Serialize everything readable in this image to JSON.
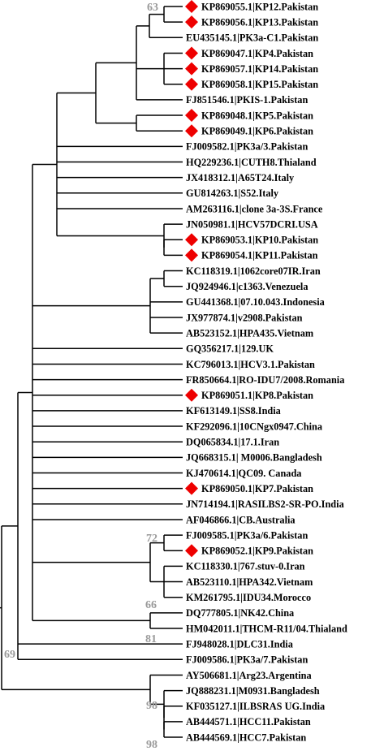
{
  "marker_color": "#ee0000",
  "support_color": "#9a9a9a",
  "leaves": [
    {
      "label": "KP869055.1|KP12.Pakistan",
      "marked": true
    },
    {
      "label": "KP869056.1|KP13.Pakistan",
      "marked": true
    },
    {
      "label": "EU435145.1|PK3a-C1.Pakistan",
      "marked": false
    },
    {
      "label": "KP869047.1|KP4.Pakistan",
      "marked": true
    },
    {
      "label": "KP869057.1|KP14.Pakistan",
      "marked": true
    },
    {
      "label": "KP869058.1|KP15.Pakistan",
      "marked": true
    },
    {
      "label": "FJ851546.1|PKIS-1.Pakistan",
      "marked": false
    },
    {
      "label": "KP869048.1|KP5.Pakistan",
      "marked": true
    },
    {
      "label": "KP869049.1|KP6.Pakistan",
      "marked": true
    },
    {
      "label": "FJ009582.1|PK3a/3.Pakistan",
      "marked": false
    },
    {
      "label": "HQ229236.1|CUTH8.Thialand",
      "marked": false
    },
    {
      "label": "JX418312.1|A65T24.Italy",
      "marked": false
    },
    {
      "label": "GU814263.1|S52.Italy",
      "marked": false
    },
    {
      "label": "AM263116.1|clone 3a-3S.France",
      "marked": false
    },
    {
      "label": "JN050981.1|HCV57DCRI.USA",
      "marked": false
    },
    {
      "label": "KP869053.1|KP10.Pakistan",
      "marked": true
    },
    {
      "label": "KP869054.1|KP11.Pakistan",
      "marked": true
    },
    {
      "label": "KC118319.1|1062core07IR.Iran",
      "marked": false
    },
    {
      "label": "JQ924946.1|c1363.Venezuela",
      "marked": false
    },
    {
      "label": "GU441368.1|07.10.043.Indonesia",
      "marked": false
    },
    {
      "label": "JX977874.1|v2908.Pakistan",
      "marked": false
    },
    {
      "label": "AB523152.1|HPA435.Vietnam",
      "marked": false
    },
    {
      "label": "GQ356217.1|129.UK",
      "marked": false
    },
    {
      "label": "KC796013.1|HCV3.1.Pakistan",
      "marked": false
    },
    {
      "label": "FR850664.1|RO-IDU7/2008.Romania",
      "marked": false
    },
    {
      "label": "KP869051.1|KP8.Pakistan",
      "marked": true
    },
    {
      "label": "KF613149.1|SS8.India",
      "marked": false
    },
    {
      "label": "KF292096.1|10CNgx0947.China",
      "marked": false
    },
    {
      "label": "DQ065834.1|17.1.Iran",
      "marked": false
    },
    {
      "label": "JQ668315.1| M0006.Bangladesh",
      "marked": false
    },
    {
      "label": "KJ470614.1|QC09. Canada",
      "marked": false
    },
    {
      "label": "KP869050.1|KP7.Pakistan",
      "marked": true
    },
    {
      "label": "JN714194.1|RASILBS2-SR-PO.India",
      "marked": false
    },
    {
      "label": "AF046866.1|CB.Australia",
      "marked": false
    },
    {
      "label": "FJ009585.1|PK3a/6.Pakistan",
      "marked": false
    },
    {
      "label": "KP869052.1|KP9.Pakistan",
      "marked": true
    },
    {
      "label": "KC118330.1|767.stuv-0.Iran",
      "marked": false
    },
    {
      "label": "AB523110.1|HPA342.Vietnam",
      "marked": false
    },
    {
      "label": "KM261795.1|IDU34.Morocco",
      "marked": false
    },
    {
      "label": "DQ777805.1|NK42.China",
      "marked": false
    },
    {
      "label": "HM042011.1|THCM-R11/04.Thialand",
      "marked": false
    },
    {
      "label": "FJ948028.1|DLC31.India",
      "marked": false
    },
    {
      "label": "FJ009586.1|PK3a/7.Pakistan",
      "marked": false
    },
    {
      "label": "AY506681.1|Arg23.Argentina",
      "marked": false
    },
    {
      "label": "JQ888231.1|M0931.Bangladesh",
      "marked": false
    },
    {
      "label": "KF035127.1|ILBSRAS UG.India",
      "marked": false
    },
    {
      "label": "AB444571.1|HCC11.Pakistan",
      "marked": false
    },
    {
      "label": "AB444569.1|HCC7.Pakistan",
      "marked": false
    }
  ],
  "support_values": [
    "63",
    "72",
    "66",
    "81",
    "69",
    "98",
    "98"
  ]
}
